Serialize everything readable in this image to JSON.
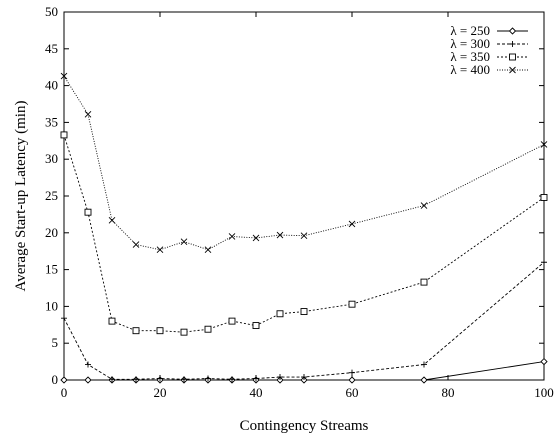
{
  "chart_data": {
    "type": "line",
    "title": "",
    "xlabel": "Contingency Streams",
    "ylabel": "Average Start-up Latency (min)",
    "xlim": [
      0,
      100
    ],
    "ylim": [
      0,
      50
    ],
    "x_ticks": [
      "0",
      "20",
      "40",
      "60",
      "80",
      "100"
    ],
    "y_ticks": [
      "0",
      "5",
      "10",
      "15",
      "20",
      "25",
      "30",
      "35",
      "40",
      "45",
      "50"
    ],
    "grid": false,
    "legend_position": "top-right",
    "series": [
      {
        "name": "λ = 250",
        "marker": "diamond",
        "line_style": "solid",
        "x": [
          0,
          5,
          10,
          15,
          20,
          25,
          30,
          35,
          40,
          45,
          50,
          60,
          75,
          100
        ],
        "y": [
          0,
          0,
          0,
          0,
          0,
          0,
          0,
          0,
          0,
          0,
          0,
          0,
          0,
          2.5
        ]
      },
      {
        "name": "λ = 300",
        "marker": "plus",
        "line_style": "dashed",
        "x": [
          0,
          5,
          10,
          15,
          20,
          25,
          30,
          35,
          40,
          45,
          50,
          60,
          75,
          100
        ],
        "y": [
          8.4,
          2.1,
          0.1,
          0.1,
          0.2,
          0.1,
          0.2,
          0.1,
          0.2,
          0.4,
          0.4,
          1.0,
          2.1,
          16.0
        ]
      },
      {
        "name": "λ = 350",
        "marker": "square",
        "line_style": "dotted",
        "x": [
          0,
          5,
          10,
          15,
          20,
          25,
          30,
          35,
          40,
          45,
          50,
          60,
          75,
          100
        ],
        "y": [
          33.3,
          22.8,
          8.0,
          6.7,
          6.7,
          6.5,
          6.9,
          8.0,
          7.4,
          9.0,
          9.3,
          10.3,
          13.3,
          24.8
        ]
      },
      {
        "name": "λ = 400",
        "marker": "cross",
        "line_style": "fine-dotted",
        "x": [
          0,
          5,
          10,
          15,
          20,
          25,
          30,
          35,
          40,
          45,
          50,
          60,
          75,
          100
        ],
        "y": [
          41.3,
          36.1,
          21.7,
          18.4,
          17.7,
          18.8,
          17.7,
          19.5,
          19.3,
          19.7,
          19.6,
          21.2,
          23.7,
          32.0
        ]
      }
    ]
  }
}
